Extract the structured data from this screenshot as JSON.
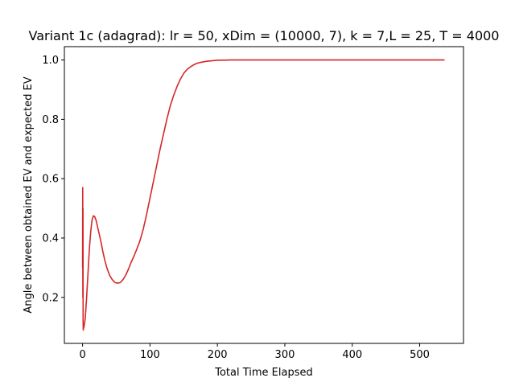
{
  "chart_data": {
    "type": "line",
    "title": "Variant 1c (adagrad): lr = 50, xDim = (10000, 7), k = 7,L = 25, T = 4000",
    "xlabel": "Total Time Elapsed",
    "ylabel": "Angle between obtained EV and expected EV",
    "xlim": [
      -27,
      565
    ],
    "ylim": [
      0.045,
      1.045
    ],
    "x_ticks": [
      0,
      100,
      200,
      300,
      400,
      500
    ],
    "y_ticks": [
      0.2,
      0.4,
      0.6,
      0.8,
      1.0
    ],
    "x_tick_labels": [
      "0",
      "100",
      "200",
      "300",
      "400",
      "500"
    ],
    "y_tick_labels": [
      "0.2",
      "0.4",
      "0.6",
      "0.8",
      "1.0"
    ],
    "grid": false,
    "series": [
      {
        "color": "#d62728",
        "x": [
          0,
          0.2,
          0.4,
          0.6,
          0.8,
          1.0,
          1.3,
          2,
          4,
          6,
          8,
          10,
          12,
          14,
          16,
          18,
          20,
          22,
          24,
          27,
          30,
          33,
          36,
          40,
          44,
          48,
          52,
          56,
          60,
          64,
          68,
          72,
          76,
          80,
          85,
          90,
          95,
          100,
          105,
          110,
          115,
          120,
          125,
          130,
          135,
          140,
          145,
          150,
          155,
          160,
          165,
          170,
          175,
          180,
          185,
          190,
          195,
          200,
          210,
          220,
          230,
          240,
          250,
          270,
          300,
          350,
          400,
          450,
          500,
          537
        ],
        "values": [
          0.3,
          0.57,
          0.2,
          0.5,
          0.12,
          0.09,
          0.095,
          0.1,
          0.13,
          0.2,
          0.28,
          0.36,
          0.42,
          0.46,
          0.475,
          0.472,
          0.46,
          0.44,
          0.42,
          0.39,
          0.355,
          0.325,
          0.3,
          0.275,
          0.26,
          0.25,
          0.248,
          0.25,
          0.26,
          0.275,
          0.295,
          0.318,
          0.338,
          0.36,
          0.39,
          0.43,
          0.48,
          0.535,
          0.59,
          0.645,
          0.7,
          0.75,
          0.8,
          0.845,
          0.88,
          0.91,
          0.935,
          0.955,
          0.968,
          0.977,
          0.984,
          0.989,
          0.992,
          0.994,
          0.996,
          0.997,
          0.998,
          0.999,
          0.9995,
          1.0,
          1.0,
          1.0,
          1.0,
          1.0,
          1.0,
          1.0,
          1.0,
          1.0,
          1.0,
          1.0
        ]
      }
    ]
  }
}
